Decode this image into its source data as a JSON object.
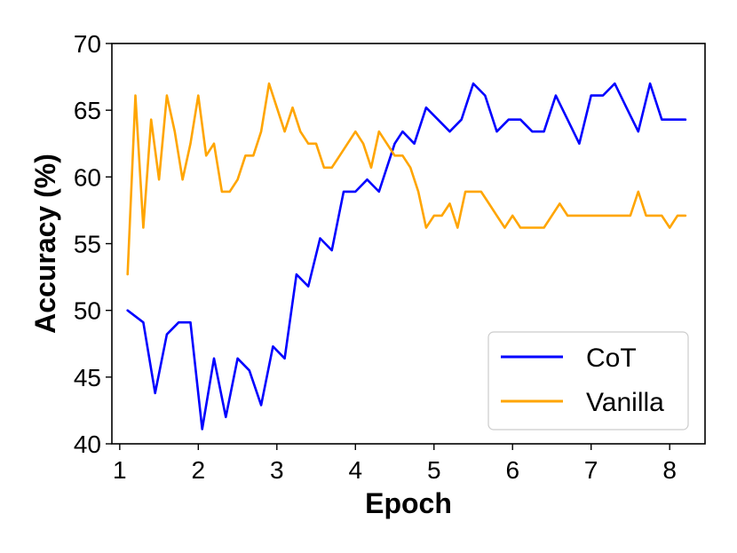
{
  "chart_data": {
    "type": "line",
    "xlabel": "Epoch",
    "ylabel": "Accuracy (%)",
    "xlim": [
      0.9,
      8.45
    ],
    "ylim": [
      40,
      70
    ],
    "xticks": [
      1,
      2,
      3,
      4,
      5,
      6,
      7,
      8
    ],
    "yticks": [
      40,
      45,
      50,
      55,
      60,
      65,
      70
    ],
    "grid": false,
    "legend_position": "lower-right",
    "series": [
      {
        "name": "CoT",
        "color": "#0000ff",
        "x": [
          1.1,
          1.3,
          1.45,
          1.6,
          1.75,
          1.9,
          2.05,
          2.2,
          2.35,
          2.5,
          2.65,
          2.8,
          2.95,
          3.1,
          3.25,
          3.4,
          3.55,
          3.7,
          3.85,
          4.0,
          4.15,
          4.3,
          4.5,
          4.6,
          4.75,
          4.9,
          5.05,
          5.2,
          5.35,
          5.5,
          5.65,
          5.8,
          5.95,
          6.1,
          6.25,
          6.4,
          6.55,
          6.7,
          6.85,
          7.0,
          7.15,
          7.3,
          7.45,
          7.6,
          7.75,
          7.9,
          8.2
        ],
        "y": [
          50.0,
          49.1,
          43.8,
          48.2,
          49.1,
          49.1,
          41.1,
          46.4,
          42.0,
          46.4,
          45.5,
          42.9,
          47.3,
          46.4,
          52.7,
          51.8,
          55.4,
          54.5,
          58.9,
          58.9,
          59.8,
          58.9,
          62.5,
          63.4,
          62.5,
          65.2,
          64.3,
          63.4,
          64.3,
          67.0,
          66.1,
          63.4,
          64.3,
          64.3,
          63.4,
          63.4,
          66.1,
          64.3,
          62.5,
          66.1,
          66.1,
          67.0,
          65.2,
          63.4,
          67.0,
          64.3,
          64.3
        ]
      },
      {
        "name": "Vanilla",
        "color": "#ffa500",
        "x": [
          1.1,
          1.2,
          1.3,
          1.4,
          1.5,
          1.6,
          1.7,
          1.8,
          1.9,
          2.0,
          2.1,
          2.2,
          2.3,
          2.4,
          2.5,
          2.6,
          2.7,
          2.8,
          2.9,
          3.0,
          3.1,
          3.2,
          3.3,
          3.4,
          3.5,
          3.6,
          3.7,
          3.8,
          3.9,
          4.0,
          4.1,
          4.2,
          4.3,
          4.4,
          4.5,
          4.6,
          4.7,
          4.8,
          4.9,
          5.0,
          5.1,
          5.2,
          5.3,
          5.4,
          5.5,
          5.6,
          5.7,
          5.8,
          5.9,
          6.0,
          6.1,
          6.2,
          6.3,
          6.4,
          6.5,
          6.6,
          6.7,
          6.8,
          6.9,
          7.0,
          7.1,
          7.2,
          7.3,
          7.4,
          7.5,
          7.6,
          7.7,
          7.8,
          7.9,
          8.0,
          8.1,
          8.2
        ],
        "y": [
          52.7,
          66.1,
          56.2,
          64.3,
          59.8,
          66.1,
          63.4,
          59.8,
          62.5,
          66.1,
          61.6,
          62.5,
          58.9,
          58.9,
          59.8,
          61.6,
          61.6,
          63.4,
          67.0,
          65.2,
          63.4,
          65.2,
          63.4,
          62.5,
          62.5,
          60.7,
          60.7,
          61.6,
          62.5,
          63.4,
          62.5,
          60.7,
          63.4,
          62.5,
          61.6,
          61.6,
          60.7,
          58.9,
          56.2,
          57.1,
          57.1,
          58.0,
          56.2,
          58.9,
          58.9,
          58.9,
          58.0,
          57.1,
          56.2,
          57.1,
          56.2,
          56.2,
          56.2,
          56.2,
          57.1,
          58.0,
          57.1,
          57.1,
          57.1,
          57.1,
          57.1,
          57.1,
          57.1,
          57.1,
          57.1,
          58.9,
          57.1,
          57.1,
          57.1,
          56.2,
          57.1,
          57.1
        ]
      }
    ]
  }
}
